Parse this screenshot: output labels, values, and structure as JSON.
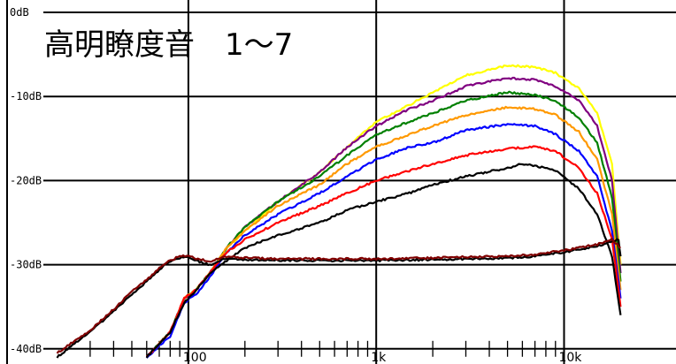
{
  "chart_data": {
    "type": "line",
    "title": "高明瞭度音　1～7",
    "xlabel": "",
    "ylabel": "",
    "x_scale": "log",
    "xlim": [
      20,
      20000
    ],
    "ylim": [
      -41,
      0
    ],
    "grid": true,
    "legend": "none",
    "x_tick_labels": [
      {
        "value": 100,
        "label": "100"
      },
      {
        "value": 1000,
        "label": "1k"
      },
      {
        "value": 10000,
        "label": "10k"
      }
    ],
    "y_tick_labels": [
      {
        "value": 0,
        "label": "0dB"
      },
      {
        "value": -10,
        "label": "-10dB"
      },
      {
        "value": -20,
        "label": "-20dB"
      },
      {
        "value": -30,
        "label": "-30dB"
      },
      {
        "value": -40,
        "label": "-40dB"
      }
    ],
    "minor_x_ticks": [
      30,
      40,
      50,
      60,
      70,
      80,
      90,
      200,
      300,
      400,
      500,
      600,
      700,
      800,
      900,
      2000,
      3000,
      4000,
      5000,
      6000,
      7000,
      8000,
      9000
    ],
    "series": [
      {
        "color": "#ffff00",
        "points": [
          [
            60,
            -41
          ],
          [
            80,
            -38
          ],
          [
            95,
            -34
          ],
          [
            110,
            -33
          ],
          [
            130,
            -31
          ],
          [
            160,
            -28
          ],
          [
            200,
            -26
          ],
          [
            300,
            -22.5
          ],
          [
            500,
            -19
          ],
          [
            700,
            -16
          ],
          [
            1000,
            -13
          ],
          [
            1500,
            -11
          ],
          [
            2000,
            -9.5
          ],
          [
            3000,
            -7.5
          ],
          [
            5000,
            -6.3
          ],
          [
            7000,
            -6.5
          ],
          [
            9000,
            -7.2
          ],
          [
            12000,
            -9
          ],
          [
            15000,
            -12
          ],
          [
            18000,
            -18
          ],
          [
            20000,
            -30
          ]
        ]
      },
      {
        "color": "#800080",
        "points": [
          [
            60,
            -41
          ],
          [
            80,
            -38
          ],
          [
            95,
            -34
          ],
          [
            110,
            -33
          ],
          [
            130,
            -31
          ],
          [
            160,
            -28
          ],
          [
            200,
            -25.5
          ],
          [
            300,
            -22.5
          ],
          [
            500,
            -19
          ],
          [
            700,
            -16
          ],
          [
            1000,
            -13.5
          ],
          [
            1500,
            -11.5
          ],
          [
            2000,
            -10.5
          ],
          [
            3000,
            -8.8
          ],
          [
            5000,
            -7.8
          ],
          [
            7000,
            -8
          ],
          [
            9000,
            -8.8
          ],
          [
            12000,
            -10.5
          ],
          [
            15000,
            -13.5
          ],
          [
            18000,
            -20
          ],
          [
            20000,
            -31
          ]
        ]
      },
      {
        "color": "#008000",
        "points": [
          [
            60,
            -41
          ],
          [
            80,
            -38
          ],
          [
            95,
            -34
          ],
          [
            110,
            -33
          ],
          [
            130,
            -31
          ],
          [
            160,
            -28
          ],
          [
            200,
            -25.5
          ],
          [
            300,
            -22.5
          ],
          [
            500,
            -19.5
          ],
          [
            700,
            -17
          ],
          [
            1000,
            -14.5
          ],
          [
            1500,
            -13
          ],
          [
            2000,
            -12
          ],
          [
            3000,
            -10.5
          ],
          [
            5000,
            -9.5
          ],
          [
            7000,
            -9.8
          ],
          [
            9000,
            -10.5
          ],
          [
            12000,
            -12.5
          ],
          [
            15000,
            -15.5
          ],
          [
            18000,
            -22
          ],
          [
            20000,
            -32
          ]
        ]
      },
      {
        "color": "#ff9900",
        "points": [
          [
            60,
            -41
          ],
          [
            80,
            -38
          ],
          [
            95,
            -34
          ],
          [
            110,
            -33
          ],
          [
            130,
            -31
          ],
          [
            160,
            -28
          ],
          [
            200,
            -26
          ],
          [
            300,
            -23
          ],
          [
            500,
            -20.5
          ],
          [
            700,
            -18
          ],
          [
            1000,
            -16
          ],
          [
            1500,
            -14.5
          ],
          [
            2000,
            -13.5
          ],
          [
            3000,
            -12.2
          ],
          [
            5000,
            -11.3
          ],
          [
            7000,
            -11.5
          ],
          [
            9000,
            -12.2
          ],
          [
            12000,
            -14.2
          ],
          [
            15000,
            -17.5
          ],
          [
            18000,
            -24
          ],
          [
            20000,
            -33
          ]
        ]
      },
      {
        "color": "#0000ff",
        "points": [
          [
            60,
            -41
          ],
          [
            80,
            -38.5
          ],
          [
            95,
            -34.5
          ],
          [
            110,
            -33.5
          ],
          [
            130,
            -31.5
          ],
          [
            160,
            -28.5
          ],
          [
            200,
            -26.5
          ],
          [
            300,
            -24
          ],
          [
            500,
            -21.5
          ],
          [
            700,
            -19.5
          ],
          [
            1000,
            -17.5
          ],
          [
            1500,
            -16
          ],
          [
            2000,
            -15.5
          ],
          [
            3000,
            -14
          ],
          [
            5000,
            -13.3
          ],
          [
            7000,
            -13.5
          ],
          [
            9000,
            -14.5
          ],
          [
            12000,
            -16.5
          ],
          [
            15000,
            -19.5
          ],
          [
            18000,
            -26
          ],
          [
            20000,
            -34
          ]
        ]
      },
      {
        "color": "#ff0000",
        "points": [
          [
            60,
            -41
          ],
          [
            80,
            -38
          ],
          [
            95,
            -34
          ],
          [
            110,
            -33
          ],
          [
            130,
            -31
          ],
          [
            160,
            -28.5
          ],
          [
            200,
            -27
          ],
          [
            300,
            -25
          ],
          [
            500,
            -23
          ],
          [
            700,
            -21.5
          ],
          [
            1000,
            -20
          ],
          [
            1500,
            -18.8
          ],
          [
            2000,
            -18
          ],
          [
            3000,
            -17
          ],
          [
            5000,
            -16.2
          ],
          [
            7000,
            -16
          ],
          [
            9000,
            -16.5
          ],
          [
            12000,
            -18.5
          ],
          [
            15000,
            -21.5
          ],
          [
            18000,
            -27
          ],
          [
            20000,
            -35
          ]
        ]
      },
      {
        "color": "#000000",
        "points": [
          [
            60,
            -41
          ],
          [
            80,
            -38
          ],
          [
            95,
            -34.5
          ],
          [
            110,
            -33
          ],
          [
            130,
            -31
          ],
          [
            160,
            -29.5
          ],
          [
            200,
            -28
          ],
          [
            300,
            -26.5
          ],
          [
            500,
            -25
          ],
          [
            700,
            -23.5
          ],
          [
            1000,
            -22.5
          ],
          [
            1500,
            -21.5
          ],
          [
            2000,
            -20.5
          ],
          [
            3000,
            -19.5
          ],
          [
            5000,
            -18.5
          ],
          [
            6000,
            -18
          ],
          [
            7000,
            -18.2
          ],
          [
            9000,
            -18.8
          ],
          [
            12000,
            -21
          ],
          [
            15000,
            -24
          ],
          [
            18000,
            -29
          ],
          [
            20000,
            -36
          ]
        ]
      },
      {
        "color": "#000000",
        "points": [
          [
            20,
            -41
          ],
          [
            30,
            -38
          ],
          [
            40,
            -35.5
          ],
          [
            50,
            -33.5
          ],
          [
            60,
            -32
          ],
          [
            75,
            -30
          ],
          [
            90,
            -29.2
          ],
          [
            100,
            -29
          ],
          [
            110,
            -29.5
          ],
          [
            130,
            -30
          ],
          [
            160,
            -29.2
          ],
          [
            200,
            -29.4
          ],
          [
            300,
            -29.5
          ],
          [
            500,
            -29.5
          ],
          [
            1000,
            -29.5
          ],
          [
            2000,
            -29.4
          ],
          [
            3000,
            -29.3
          ],
          [
            5000,
            -29.2
          ],
          [
            7000,
            -29
          ],
          [
            10000,
            -28.5
          ],
          [
            15000,
            -27.8
          ],
          [
            18000,
            -27.2
          ],
          [
            19500,
            -27
          ],
          [
            20000,
            -29
          ]
        ]
      },
      {
        "color": "#800000",
        "points": [
          [
            20,
            -40.5
          ],
          [
            30,
            -37.8
          ],
          [
            40,
            -35.3
          ],
          [
            50,
            -33.2
          ],
          [
            60,
            -31.8
          ],
          [
            75,
            -29.8
          ],
          [
            90,
            -29
          ],
          [
            100,
            -28.9
          ],
          [
            110,
            -29.3
          ],
          [
            130,
            -29.6
          ],
          [
            160,
            -29
          ],
          [
            200,
            -29.2
          ],
          [
            300,
            -29.3
          ],
          [
            500,
            -29.3
          ],
          [
            1000,
            -29.3
          ],
          [
            2000,
            -29.2
          ],
          [
            3000,
            -29.1
          ],
          [
            5000,
            -29
          ],
          [
            7000,
            -28.8
          ],
          [
            10000,
            -28.3
          ],
          [
            15000,
            -27.6
          ],
          [
            18000,
            -27
          ],
          [
            20000,
            -28
          ]
        ]
      }
    ]
  }
}
